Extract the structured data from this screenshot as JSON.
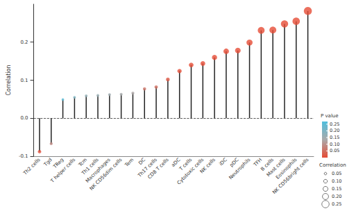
{
  "chart_data": {
    "type": "lollipop",
    "y_label": "Correlation",
    "categories": [
      "Th2 cells",
      "Tgd",
      "TReg",
      "T helper cells",
      "Tcm",
      "Th1 cells",
      "Macrophages",
      "NK CD56dim cells",
      "Tem",
      "DC",
      "Th17 cells",
      "CD8 T cells",
      "aDC",
      "T cells",
      "Cytotoxic cells",
      "NK cells",
      "iDC",
      "pDC",
      "Neutrophils",
      "TFH",
      "B cells",
      "Mast cells",
      "Eosinophils",
      "NK CD56bright cells"
    ],
    "values": [
      -0.088,
      -0.067,
      0.049,
      0.055,
      0.059,
      0.06,
      0.062,
      0.063,
      0.066,
      0.077,
      0.082,
      0.102,
      0.124,
      0.14,
      0.144,
      0.16,
      0.176,
      0.178,
      0.199,
      0.231,
      0.232,
      0.248,
      0.255,
      0.282
    ],
    "p_values": [
      0.01,
      0.09,
      0.25,
      0.2,
      0.17,
      0.16,
      0.15,
      0.14,
      0.13,
      0.06,
      0.05,
      0.02,
      0.005,
      0.001,
      0.001,
      0.001,
      0.001,
      0.001,
      0.001,
      0.001,
      0.001,
      0.001,
      0.001,
      0.001
    ],
    "ylim": [
      -0.1,
      0.3
    ],
    "yticks": [
      -0.1,
      {
        "value": 0,
        "label": "0.0"
      },
      0.1,
      0.2
    ],
    "reference_line": 0,
    "p_legend_title": "P value",
    "p_range": [
      0,
      0.27
    ],
    "p_ticks": [
      0.05,
      {
        "value": 0.1,
        "label": "0.10"
      },
      0.15,
      {
        "value": 0.2,
        "label": "0.20"
      },
      0.25
    ],
    "size_legend_title": "Correlation",
    "size_ticks": [
      0.05,
      {
        "value": 0.1,
        "label": "0.10"
      },
      0.15,
      {
        "value": 0.2,
        "label": "0.20"
      },
      0.25
    ]
  }
}
